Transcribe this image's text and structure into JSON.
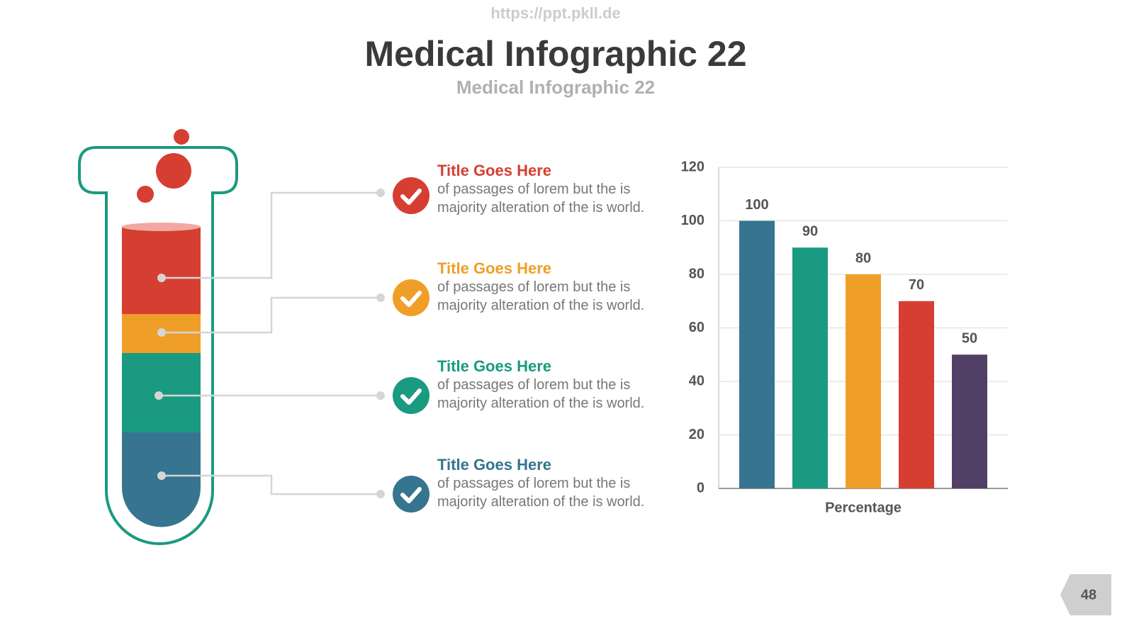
{
  "header": {
    "url": "https://ppt.pkll.de",
    "title": "Medical Infographic 22",
    "subtitle": "Medical Infographic 22"
  },
  "items": [
    {
      "title": "Title Goes Here",
      "text": "of passages of lorem but the is majority alteration of the is world.",
      "color": "#d63e32"
    },
    {
      "title": "Title Goes Here",
      "text": "of passages of lorem but the is majority alteration of the is world.",
      "color": "#ef9f27"
    },
    {
      "title": "Title Goes Here",
      "text": "of passages of lorem but the is majority alteration of the is world.",
      "color": "#1a9a80"
    },
    {
      "title": "Title Goes Here",
      "text": "of passages of lorem but the is majority alteration of the is world.",
      "color": "#36748f"
    }
  ],
  "chart_data": {
    "type": "bar",
    "categories": [
      null,
      null,
      null,
      null,
      null
    ],
    "x_label": "Percentage",
    "values": [
      100,
      90,
      80,
      70,
      50
    ],
    "colors": [
      "#36748f",
      "#1a9a80",
      "#ef9f27",
      "#d63e32",
      "#523f66"
    ],
    "ylim": [
      0,
      120
    ],
    "yticks": [
      0,
      20,
      40,
      60,
      80,
      100,
      120
    ],
    "grid": true
  },
  "page_number": "48"
}
